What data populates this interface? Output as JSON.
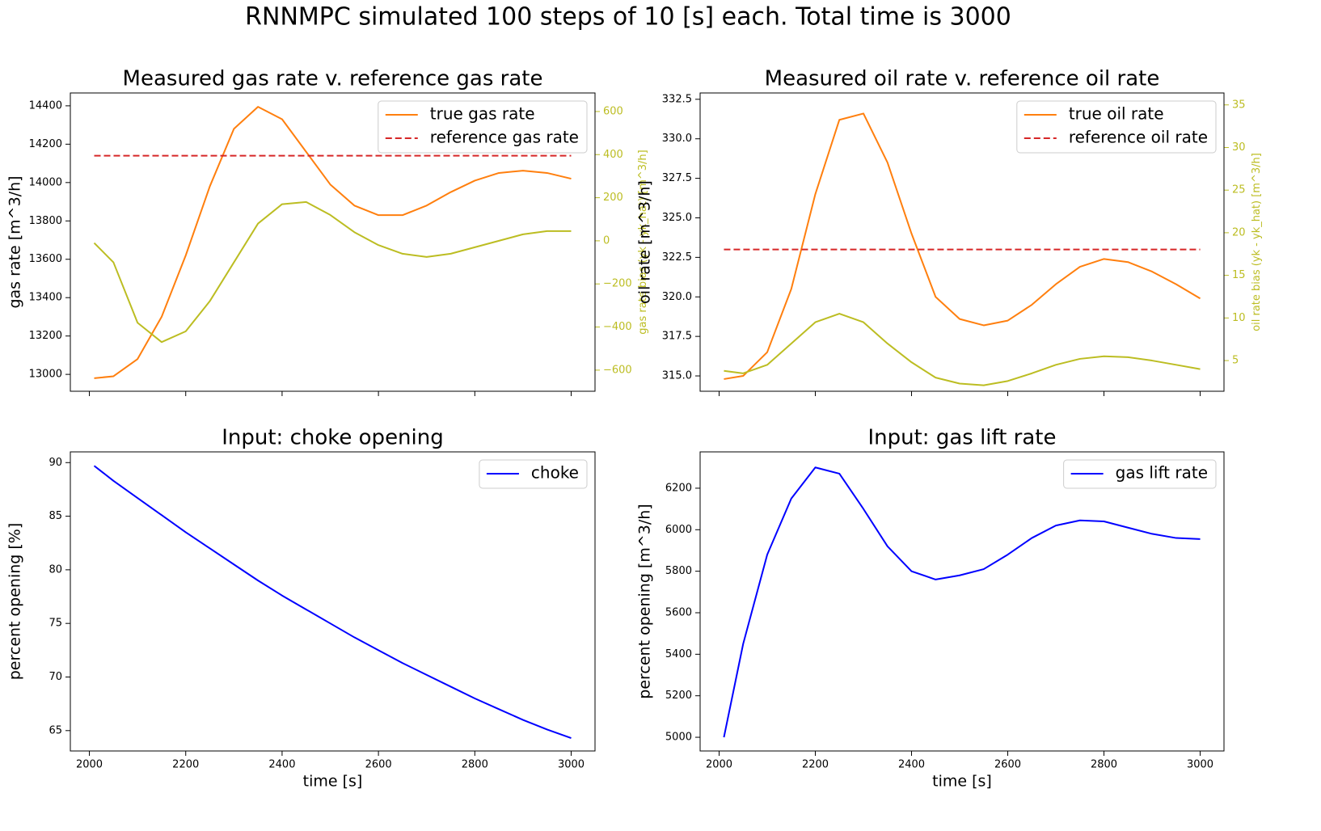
{
  "title": "RNNMPC simulated 100 steps of 10 [s] each. Total time is 3000",
  "chart_data": [
    {
      "type": "line",
      "title": "Measured gas rate v. reference gas rate",
      "ylabel": "gas rate [m^3/h]",
      "y2label": "gas rate bias (yk - yk_hat) [m^3/h]",
      "y2color": "#bcbd22",
      "x": [
        2010,
        2050,
        2100,
        2150,
        2200,
        2250,
        2300,
        2350,
        2400,
        2450,
        2500,
        2550,
        2600,
        2650,
        2700,
        2750,
        2800,
        2850,
        2900,
        2950,
        3000
      ],
      "xlim": [
        1960.5,
        3049.5
      ],
      "xticks": [
        2000,
        2200,
        2400,
        2600,
        2800,
        3000
      ],
      "show_xtick_labels": false,
      "ylim": [
        12912,
        14467
      ],
      "yticks": [
        13000,
        13200,
        13400,
        13600,
        13800,
        14000,
        14200,
        14400
      ],
      "y2lim": [
        -698,
        686
      ],
      "y2ticks": [
        {
          "value": -600,
          "label": "−600"
        },
        {
          "value": -400,
          "label": "−400"
        },
        {
          "value": -200,
          "label": "−200"
        },
        0,
        200,
        400,
        600
      ],
      "legend": "upper right",
      "series": [
        {
          "name": "true gas rate",
          "color": "#ff7f0e",
          "linestyle": "solid",
          "values": [
            12980,
            12990,
            13080,
            13300,
            13620,
            13980,
            14280,
            14395,
            14330,
            14160,
            13990,
            13880,
            13830,
            13830,
            13880,
            13950,
            14010,
            14050,
            14062,
            14050,
            14020
          ]
        },
        {
          "name": "reference gas rate",
          "color": "#d62728",
          "linestyle": "dashed",
          "values": [
            14140,
            14140,
            14140,
            14140,
            14140,
            14140,
            14140,
            14140,
            14140,
            14140,
            14140,
            14140,
            14140,
            14140,
            14140,
            14140,
            14140,
            14140,
            14140,
            14140,
            14140
          ]
        },
        {
          "color": "#bcbd22",
          "linestyle": "solid",
          "axis": "y2",
          "values": [
            -10,
            -100,
            -380,
            -470,
            -420,
            -280,
            -100,
            80,
            170,
            180,
            120,
            40,
            -20,
            -60,
            -75,
            -60,
            -30,
            0,
            30,
            45,
            45
          ]
        }
      ]
    },
    {
      "type": "line",
      "title": "Measured oil rate v. reference oil rate",
      "ylabel": "oil rate [m^3/h]",
      "y2label": "oil rate bias (yk - yk_hat) [m^3/h]",
      "y2color": "#bcbd22",
      "x": [
        2010,
        2050,
        2100,
        2150,
        2200,
        2250,
        2300,
        2350,
        2400,
        2450,
        2500,
        2550,
        2600,
        2650,
        2700,
        2750,
        2800,
        2850,
        2900,
        2950,
        3000
      ],
      "xlim": [
        1960.5,
        3049.5
      ],
      "xticks": [
        2000,
        2200,
        2400,
        2600,
        2800,
        3000
      ],
      "show_xtick_labels": false,
      "ylim": [
        314.03,
        332.9
      ],
      "yticks": [
        {
          "value": 315,
          "label": "315.0"
        },
        317.5,
        {
          "value": 320,
          "label": "320.0"
        },
        322.5,
        {
          "value": 325,
          "label": "325.0"
        },
        327.5,
        {
          "value": 330,
          "label": "330.0"
        },
        332.5
      ],
      "y2lim": [
        1.4,
        36.4
      ],
      "y2ticks": [
        5,
        10,
        15,
        20,
        25,
        30,
        35
      ],
      "legend": "upper right",
      "series": [
        {
          "name": "true oil rate",
          "color": "#ff7f0e",
          "linestyle": "solid",
          "values": [
            314.8,
            315.0,
            316.5,
            320.5,
            326.5,
            331.2,
            331.6,
            328.5,
            324.0,
            320.0,
            318.6,
            318.2,
            318.5,
            319.5,
            320.8,
            321.9,
            322.4,
            322.2,
            321.6,
            320.8,
            319.9
          ]
        },
        {
          "name": "reference oil rate",
          "color": "#d62728",
          "linestyle": "dashed",
          "values": [
            323,
            323,
            323,
            323,
            323,
            323,
            323,
            323,
            323,
            323,
            323,
            323,
            323,
            323,
            323,
            323,
            323,
            323,
            323,
            323,
            323
          ]
        },
        {
          "color": "#bcbd22",
          "linestyle": "solid",
          "axis": "y2",
          "values": [
            3.8,
            3.5,
            4.5,
            7,
            9.5,
            10.5,
            9.5,
            7,
            4.8,
            3,
            2.3,
            2.1,
            2.6,
            3.5,
            4.5,
            5.2,
            5.5,
            5.4,
            5,
            4.5,
            4
          ]
        }
      ]
    },
    {
      "type": "line",
      "title": "Input: choke opening",
      "ylabel": "percent opening [%]",
      "xlabel": "time [s]",
      "x": [
        2010,
        2050,
        2100,
        2150,
        2200,
        2250,
        2300,
        2350,
        2400,
        2450,
        2500,
        2550,
        2600,
        2650,
        2700,
        2750,
        2800,
        2850,
        2900,
        2950,
        3000
      ],
      "xlim": [
        1960.5,
        3049.5
      ],
      "xticks": [
        2000,
        2200,
        2400,
        2600,
        2800,
        3000
      ],
      "show_xtick_labels": true,
      "ylim": [
        63.1,
        91.0
      ],
      "yticks": [
        65,
        70,
        75,
        80,
        85,
        90
      ],
      "legend": "upper right",
      "series": [
        {
          "name": "choke",
          "color": "#0000ff",
          "linestyle": "solid",
          "values": [
            89.7,
            88.3,
            86.7,
            85.1,
            83.5,
            82.0,
            80.5,
            79.0,
            77.6,
            76.3,
            75.0,
            73.7,
            72.5,
            71.3,
            70.2,
            69.1,
            68.0,
            67.0,
            66.0,
            65.1,
            64.3
          ]
        }
      ]
    },
    {
      "type": "line",
      "title": "Input: gas lift rate",
      "ylabel": "percent opening [m^3/h]",
      "xlabel": "time [s]",
      "x": [
        2010,
        2050,
        2100,
        2150,
        2200,
        2250,
        2300,
        2350,
        2400,
        2450,
        2500,
        2550,
        2600,
        2650,
        2700,
        2750,
        2800,
        2850,
        2900,
        2950,
        3000
      ],
      "xlim": [
        1960.5,
        3049.5
      ],
      "xticks": [
        2000,
        2200,
        2400,
        2600,
        2800,
        3000
      ],
      "show_xtick_labels": true,
      "ylim": [
        4934,
        6375
      ],
      "yticks": [
        5000,
        5200,
        5400,
        5600,
        5800,
        6000,
        6200
      ],
      "legend": "upper right",
      "series": [
        {
          "name": "gas lift rate",
          "color": "#0000ff",
          "linestyle": "solid",
          "values": [
            5000,
            5450,
            5880,
            6150,
            6300,
            6270,
            6100,
            5920,
            5800,
            5760,
            5780,
            5810,
            5880,
            5960,
            6020,
            6045,
            6040,
            6010,
            5980,
            5960,
            5955
          ]
        }
      ]
    }
  ]
}
